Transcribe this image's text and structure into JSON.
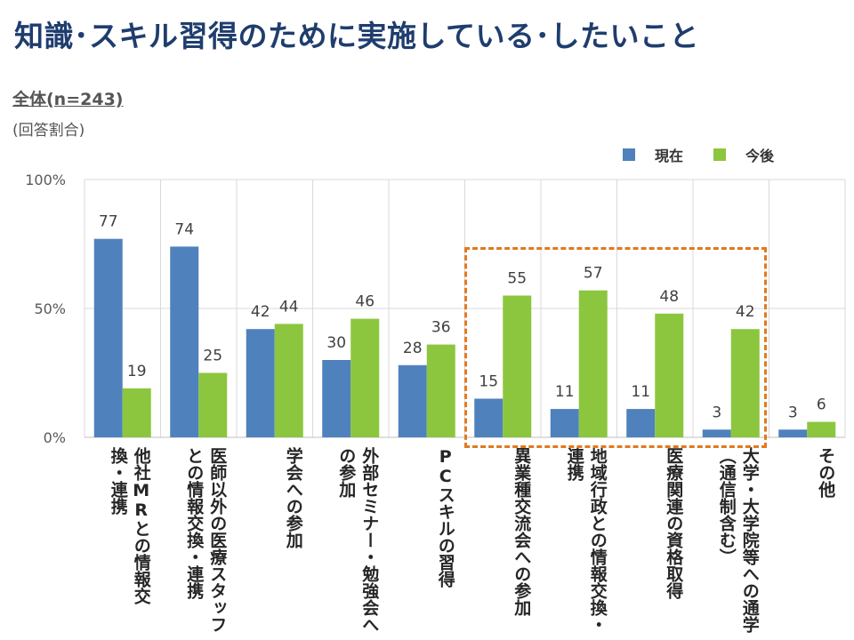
{
  "title": "知識･スキル習得のために実施している･したいこと",
  "subset_label": "全体(n=243)",
  "note": "(回答割合)",
  "colors": {
    "current": "#4f81bd",
    "future": "#8cc63f",
    "highlight": "#e07a1f"
  },
  "chart_data": {
    "type": "bar",
    "categories": [
      "他社MRとの情報交換・連携",
      "医師以外の医療スタッフとの情報交換・連携",
      "学会への参加",
      "外部セミナー・勉強会への参加",
      "PCスキルの習得",
      "異業種交流会への参加",
      "地域行政との情報交換・連携",
      "医療関連の資格取得",
      "大学・大学院等への通学（通信制含む）",
      "その他"
    ],
    "series": [
      {
        "name": "現在",
        "values": [
          77,
          74,
          42,
          30,
          28,
          15,
          11,
          11,
          3,
          3
        ]
      },
      {
        "name": "今後",
        "values": [
          19,
          25,
          44,
          46,
          36,
          55,
          57,
          48,
          42,
          6
        ]
      }
    ],
    "y_ticks": [
      "0%",
      "50%",
      "100%"
    ],
    "ylim": [
      0,
      100
    ],
    "grid": true,
    "legend_position": "top-right",
    "highlighted_categories": [
      5,
      6,
      7,
      8
    ]
  }
}
